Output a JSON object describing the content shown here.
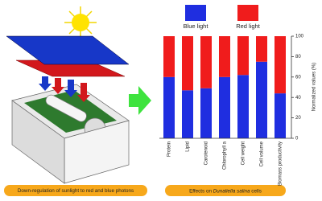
{
  "chart_data": {
    "type": "stacked-bar",
    "categories": [
      "Protein",
      "Lipid",
      "Carotenoid",
      "Chlorophyll a",
      "Cell weight",
      "Cell volume",
      "Biomass productivity"
    ],
    "series": [
      {
        "name": "Blue light",
        "color": "#1f2ee0",
        "values": [
          60,
          47,
          49,
          60,
          62,
          75,
          44
        ]
      },
      {
        "name": "Red light",
        "color": "#f01c1c",
        "values": [
          40,
          53,
          51,
          40,
          38,
          25,
          56
        ]
      }
    ],
    "ylim": [
      0,
      100
    ],
    "yticks": [
      0,
      20,
      40,
      60,
      80,
      100
    ],
    "ylabel": "Normalized values (%)",
    "caption": [
      "Effects on ",
      "Dunaliella salina",
      " cells"
    ]
  },
  "illustration": {
    "caption": "Down-regulation of sunlight to red and blue photons"
  }
}
